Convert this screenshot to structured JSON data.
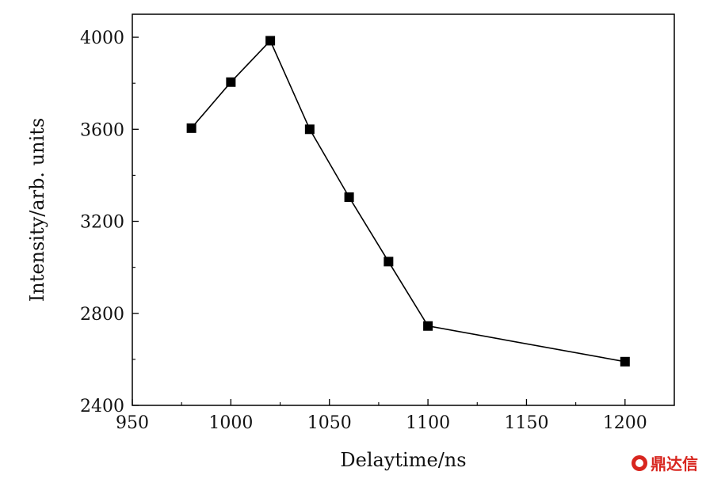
{
  "chart_data": {
    "type": "line",
    "xlabel": "Delaytime/ns",
    "ylabel": "Intensity/arb. units",
    "xlim": [
      950,
      1225
    ],
    "ylim": [
      2400,
      4100
    ],
    "x_ticks": [
      950,
      1000,
      1050,
      1100,
      1150,
      1200
    ],
    "y_ticks": [
      2400,
      2800,
      3200,
      3600,
      4000
    ],
    "marker": "square",
    "line_color": "#000000",
    "grid": false,
    "x": [
      980,
      1000,
      1020,
      1040,
      1060,
      1080,
      1100,
      1200
    ],
    "y": [
      3605,
      3805,
      3985,
      3600,
      3305,
      3025,
      2745,
      2590
    ]
  },
  "watermark": {
    "text": "鼎达信",
    "color": "#d8261f"
  }
}
